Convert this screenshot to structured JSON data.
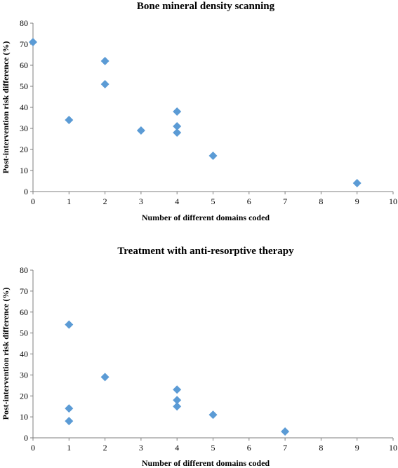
{
  "chart_data": [
    {
      "type": "scatter",
      "title": "Bone mineral density scanning",
      "xlabel": "Number of different domains coded",
      "ylabel": "Post-intervention risk difference (%)",
      "xlim": [
        0,
        10
      ],
      "ylim": [
        0,
        80
      ],
      "xticks": [
        "0",
        "1",
        "2",
        "3",
        "4",
        "5",
        "6",
        "7",
        "8",
        "9",
        "10"
      ],
      "yticks": [
        "0",
        "10",
        "20",
        "30",
        "40",
        "50",
        "60",
        "70",
        "80"
      ],
      "grid": false,
      "legend": "none",
      "marker": "diamond",
      "marker_color": "#5b9bd5",
      "points": [
        {
          "x": 0,
          "y": 71
        },
        {
          "x": 1,
          "y": 34
        },
        {
          "x": 2,
          "y": 62
        },
        {
          "x": 2,
          "y": 51
        },
        {
          "x": 3,
          "y": 29
        },
        {
          "x": 4,
          "y": 38
        },
        {
          "x": 4,
          "y": 31
        },
        {
          "x": 4,
          "y": 28
        },
        {
          "x": 5,
          "y": 17
        },
        {
          "x": 9,
          "y": 4
        }
      ]
    },
    {
      "type": "scatter",
      "title": "Treatment with anti-resorptive therapy",
      "xlabel": "Number of different domains coded",
      "ylabel": "Post-intervention risk difference (%)",
      "xlim": [
        0,
        10
      ],
      "ylim": [
        0,
        80
      ],
      "xticks": [
        "0",
        "1",
        "2",
        "3",
        "4",
        "5",
        "6",
        "7",
        "8",
        "9",
        "10"
      ],
      "yticks": [
        "0",
        "10",
        "20",
        "30",
        "40",
        "50",
        "60",
        "70",
        "80"
      ],
      "grid": false,
      "legend": "none",
      "marker": "diamond",
      "marker_color": "#5b9bd5",
      "points": [
        {
          "x": 1,
          "y": 54
        },
        {
          "x": 1,
          "y": 14
        },
        {
          "x": 1,
          "y": 8
        },
        {
          "x": 2,
          "y": 29
        },
        {
          "x": 4,
          "y": 23
        },
        {
          "x": 4,
          "y": 18
        },
        {
          "x": 4,
          "y": 15
        },
        {
          "x": 5,
          "y": 11
        },
        {
          "x": 7,
          "y": 3
        }
      ]
    }
  ]
}
